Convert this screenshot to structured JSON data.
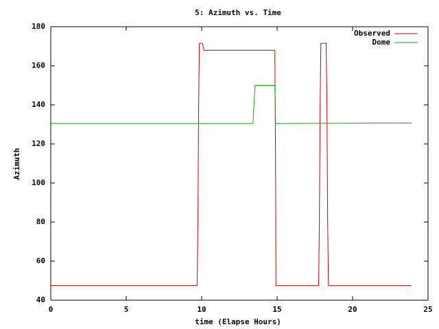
{
  "chart_data": {
    "type": "line",
    "title": "5: Azimuth vs. Time",
    "x_label": "time (Elapse Hours)",
    "y_label": "Azimuth",
    "series": [
      {
        "name": "Observed",
        "color": "#cc0000",
        "x": [
          0,
          9.7,
          9.75,
          9.8,
          9.85,
          10.05,
          10.15,
          14.85,
          14.9,
          14.92,
          17.75,
          17.8,
          17.85,
          17.9,
          18.25,
          18.3,
          18.35,
          18.4,
          23.9
        ],
        "values": [
          47.5,
          47.5,
          80,
          140,
          171.5,
          171.5,
          168,
          168,
          105,
          47.5,
          47.5,
          80,
          140,
          171.5,
          171.5,
          140,
          80,
          47.5,
          47.5
        ]
      },
      {
        "name": "Dome",
        "color": "#00aa00",
        "x": [
          0,
          13.4,
          13.5,
          13.55,
          14.85,
          14.9,
          23.9
        ],
        "values": [
          130.5,
          130.5,
          145,
          150,
          150,
          130.5,
          130.7
        ]
      }
    ],
    "xlim": [
      0,
      25
    ],
    "xticks": [
      0,
      5,
      10,
      15,
      20,
      25
    ],
    "ylim": [
      40,
      180
    ],
    "yticks": [
      40,
      60,
      80,
      100,
      120,
      140,
      160,
      180
    ],
    "grid": false,
    "legend": "top-right"
  }
}
